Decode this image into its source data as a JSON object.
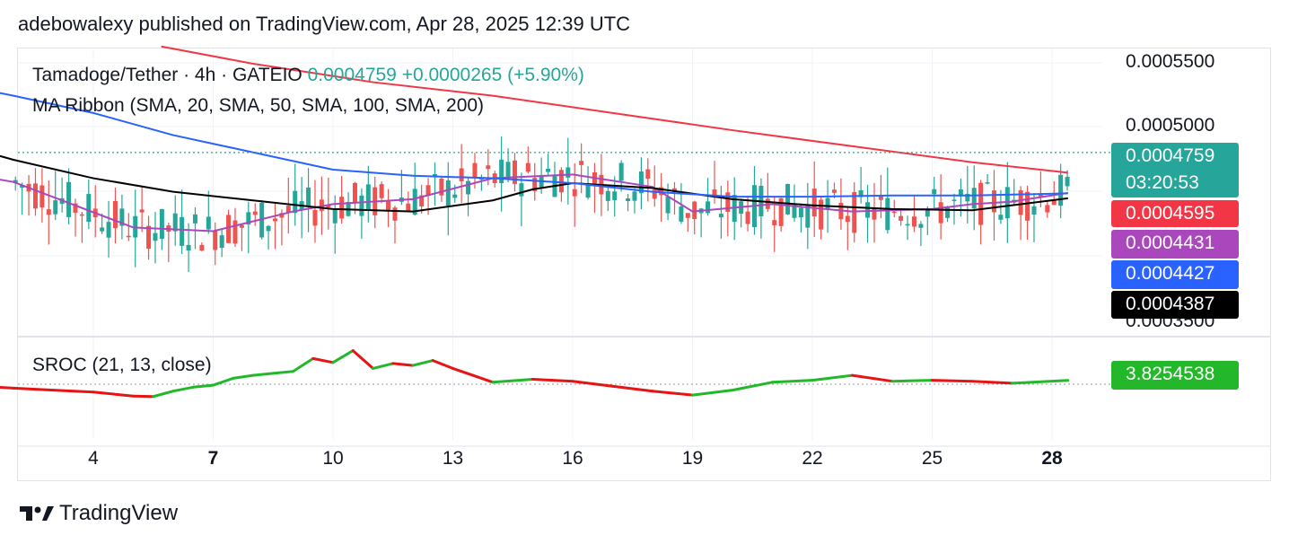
{
  "header": {
    "publish_text": "adebowalexy published on TradingView.com, Apr 28, 2025 12:39 UTC"
  },
  "legend": {
    "symbol": "Tamadoge/Tether · 4h · GATEIO",
    "last_price": "0.0004759",
    "change": "+0.0000265 (+5.90%)",
    "ma_ribbon": "MA Ribbon (SMA, 20, SMA, 50, SMA, 100, SMA, 200)",
    "sroc": "SROC (21, 13, close)"
  },
  "price_scale": {
    "ticks": [
      "0.0005500",
      "0.0005000",
      "0.0003500"
    ]
  },
  "price_tags": {
    "last": {
      "value": "0.0004759",
      "countdown": "03:20:53",
      "color": "#26a69a"
    },
    "sma200": {
      "value": "0.0004595",
      "color": "#f23645"
    },
    "sma20": {
      "value": "0.0004431",
      "color": "#ab47bc"
    },
    "sma100": {
      "value": "0.0004427",
      "color": "#2962ff"
    },
    "sma50": {
      "value": "0.0004387",
      "color": "#000000"
    },
    "sroc": {
      "value": "3.8254538",
      "color": "#22b82a"
    }
  },
  "time_axis": {
    "labels": [
      "4",
      "7",
      "10",
      "13",
      "16",
      "19",
      "22",
      "25",
      "28"
    ],
    "bold": [
      "7",
      "28"
    ]
  },
  "footer": {
    "brand": "TradingView"
  },
  "colors": {
    "up": "#26a69a",
    "down": "#ef5350",
    "sroc_up": "#22b82a",
    "sroc_down": "#e61414"
  },
  "chart_data": {
    "type": "candlestick",
    "title": "Tamadoge/Tether · 4h · GATEIO",
    "y_range": [
      0.00033,
      0.00057
    ],
    "x_labels": [
      "4",
      "7",
      "10",
      "13",
      "16",
      "19",
      "22",
      "25",
      "28"
    ],
    "last_price": 0.0004759,
    "series": [
      {
        "name": "SMA 20",
        "color": "#ab47bc",
        "x": [
          0,
          2,
          5,
          7,
          9,
          10,
          12,
          14,
          16,
          18,
          19,
          21,
          23,
          25,
          26,
          27,
          28.4
        ],
        "values": [
          0.000463,
          0.000452,
          0.000415,
          0.000412,
          0.000428,
          0.000434,
          0.000438,
          0.000455,
          0.000458,
          0.000448,
          0.000428,
          0.000434,
          0.000428,
          0.00043,
          0.000434,
          0.000436,
          0.0004431
        ]
      },
      {
        "name": "SMA 50",
        "color": "#000000",
        "x": [
          0,
          2,
          4,
          6,
          8,
          10,
          12,
          14,
          15,
          16,
          18,
          20,
          22,
          24,
          26,
          28.4
        ],
        "values": [
          0.000488,
          0.00047,
          0.000455,
          0.000444,
          0.000437,
          0.00043,
          0.000428,
          0.000437,
          0.000446,
          0.000451,
          0.000447,
          0.000438,
          0.000433,
          0.00043,
          0.000429,
          0.0004387
        ]
      },
      {
        "name": "SMA 100",
        "color": "#2962ff",
        "x": [
          0,
          2,
          4,
          6,
          8,
          10,
          12,
          14,
          16,
          18,
          20,
          22,
          24,
          26,
          28.4
        ],
        "values": [
          0.000535,
          0.000522,
          0.000508,
          0.00049,
          0.000476,
          0.000462,
          0.000457,
          0.000455,
          0.000451,
          0.000444,
          0.00044,
          0.00044,
          0.000441,
          0.000441,
          0.0004427
        ]
      },
      {
        "name": "SMA 200",
        "color": "#f23645",
        "x": [
          5.7,
          8,
          11,
          14,
          17,
          20,
          23,
          26,
          28.4
        ],
        "values": [
          0.000562,
          0.000548,
          0.000533,
          0.000522,
          0.000508,
          0.000494,
          0.000481,
          0.000468,
          0.0004595
        ]
      }
    ],
    "sroc": {
      "name": "SROC (21, 13, close)",
      "last_value": 3.8254538,
      "x": [
        0,
        1,
        2,
        3,
        4,
        5,
        5.5,
        6,
        6.5,
        7,
        7.5,
        8,
        8.5,
        9,
        9.5,
        10,
        10.5,
        11,
        11.5,
        12,
        12.5,
        13,
        13.5,
        14,
        15,
        16,
        17,
        18,
        19,
        20,
        21,
        22,
        23,
        24,
        25,
        26,
        27,
        28.4
      ],
      "values": [
        0,
        -1.5,
        -4,
        -6,
        -8,
        -12,
        -12.5,
        -7,
        -3,
        -1,
        6,
        9,
        11,
        13,
        26,
        22,
        34,
        16,
        21,
        19,
        24,
        16,
        9,
        2,
        5,
        3,
        -2,
        -7,
        -11,
        -6,
        2,
        4,
        9,
        3,
        4,
        3,
        1,
        3.8254538
      ]
    }
  }
}
